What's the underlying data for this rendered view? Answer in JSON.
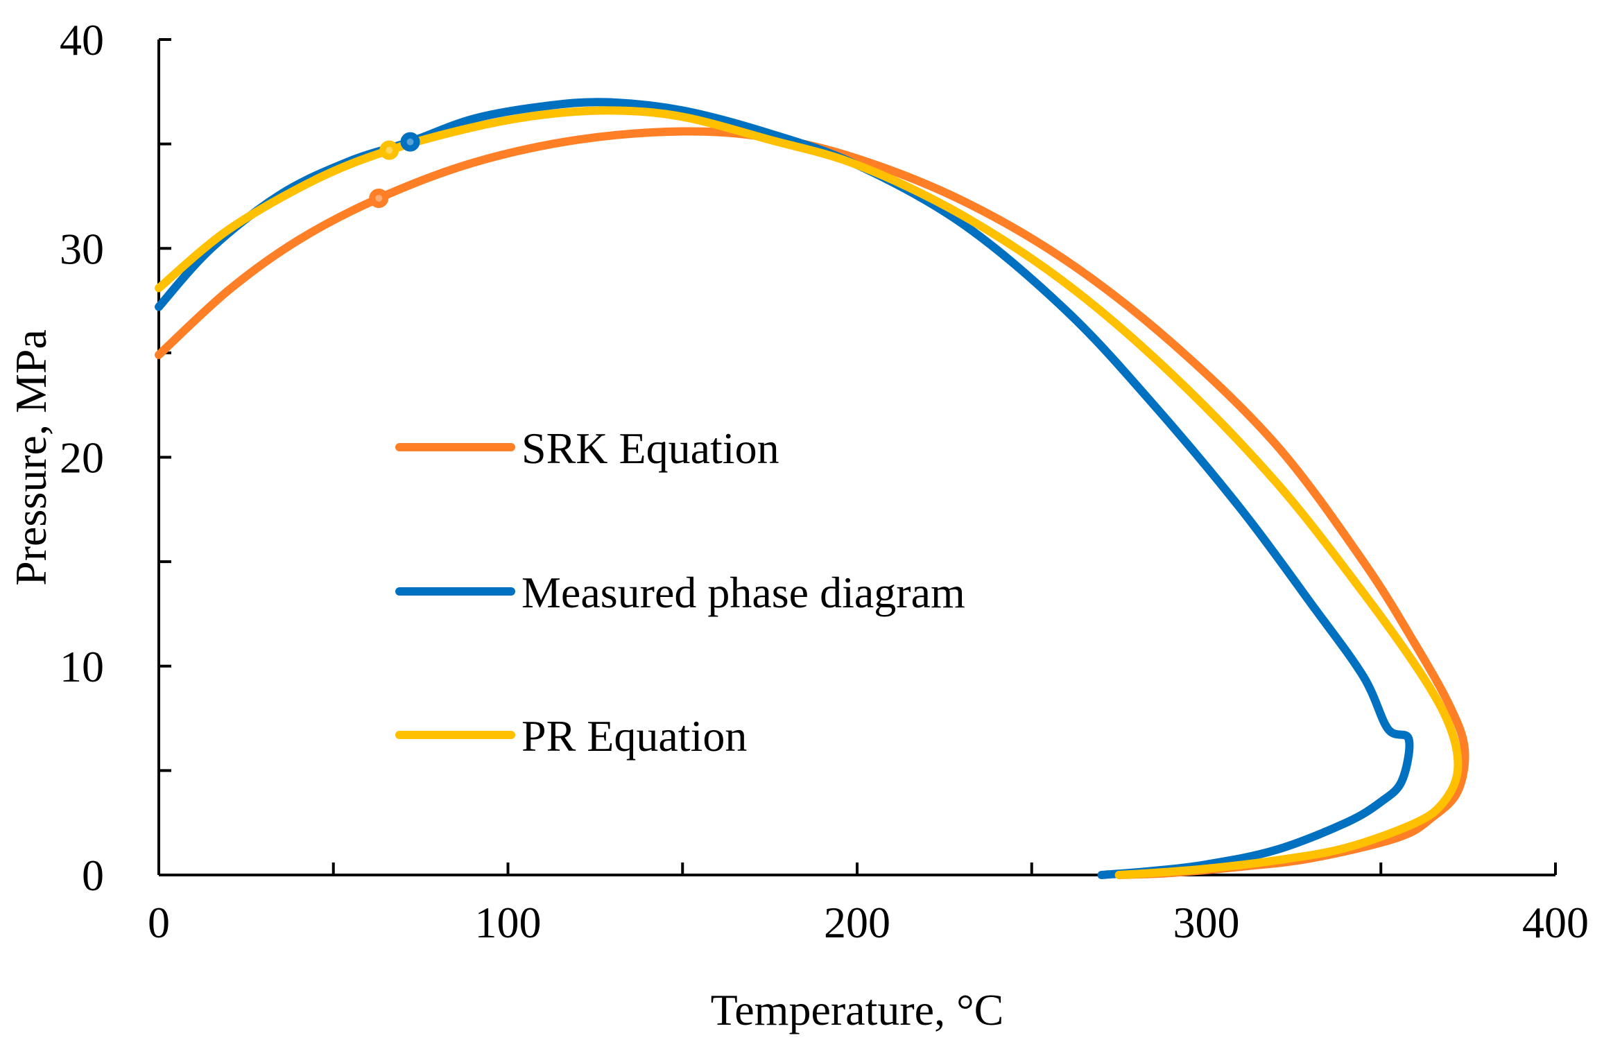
{
  "chart_data": {
    "type": "line",
    "title": "",
    "xlabel": "Temperature, °C",
    "ylabel": "Pressure, MPa",
    "xlim": [
      0,
      400
    ],
    "ylim": [
      0,
      40
    ],
    "x_ticks": [
      0,
      100,
      200,
      300,
      400
    ],
    "x_minor_ticks": [
      50,
      150,
      250,
      350
    ],
    "y_ticks": [
      0,
      10,
      20,
      30,
      40
    ],
    "y_minor_ticks": [
      5,
      15,
      25,
      35
    ],
    "grid": false,
    "legend_position": "center-left",
    "series": [
      {
        "name": "SRK Equation",
        "color": "#FF7F27",
        "points": [
          [
            0,
            24.9
          ],
          [
            20,
            28.0
          ],
          [
            40,
            30.4
          ],
          [
            63,
            32.4
          ],
          [
            90,
            34.1
          ],
          [
            120,
            35.2
          ],
          [
            150,
            35.6
          ],
          [
            175,
            35.3
          ],
          [
            200,
            34.3
          ],
          [
            230,
            32.3
          ],
          [
            260,
            29.4
          ],
          [
            290,
            25.5
          ],
          [
            320,
            20.6
          ],
          [
            345,
            15.0
          ],
          [
            360,
            11.0
          ],
          [
            370,
            8.0
          ],
          [
            374,
            6.0
          ],
          [
            372,
            4.0
          ],
          [
            365,
            2.8
          ],
          [
            355,
            1.8
          ],
          [
            330,
            0.8
          ],
          [
            310,
            0.4
          ],
          [
            290,
            0.1
          ],
          [
            275,
            0.0
          ]
        ],
        "marker": {
          "x": 63,
          "y": 32.4
        }
      },
      {
        "name": "Measured phase diagram",
        "color": "#0070C0",
        "points": [
          [
            0,
            27.2
          ],
          [
            15,
            30.0
          ],
          [
            35,
            32.6
          ],
          [
            55,
            34.2
          ],
          [
            72,
            35.1
          ],
          [
            90,
            36.2
          ],
          [
            110,
            36.8
          ],
          [
            128,
            37.0
          ],
          [
            150,
            36.6
          ],
          [
            175,
            35.5
          ],
          [
            200,
            34.0
          ],
          [
            230,
            31.2
          ],
          [
            260,
            27.0
          ],
          [
            285,
            22.5
          ],
          [
            310,
            17.5
          ],
          [
            330,
            13.0
          ],
          [
            345,
            9.5
          ],
          [
            352,
            7.0
          ],
          [
            358,
            6.5
          ],
          [
            356,
            4.5
          ],
          [
            350,
            3.5
          ],
          [
            340,
            2.5
          ],
          [
            320,
            1.2
          ],
          [
            300,
            0.5
          ],
          [
            285,
            0.2
          ],
          [
            270,
            0.0
          ]
        ],
        "marker": {
          "x": 72,
          "y": 35.1
        }
      },
      {
        "name": "PR Equation",
        "color": "#FFC000",
        "points": [
          [
            0,
            28.1
          ],
          [
            20,
            30.9
          ],
          [
            45,
            33.3
          ],
          [
            66,
            34.7
          ],
          [
            90,
            35.8
          ],
          [
            110,
            36.4
          ],
          [
            130,
            36.6
          ],
          [
            150,
            36.3
          ],
          [
            175,
            35.2
          ],
          [
            200,
            34.0
          ],
          [
            230,
            31.6
          ],
          [
            260,
            28.3
          ],
          [
            290,
            24.0
          ],
          [
            320,
            18.8
          ],
          [
            345,
            13.5
          ],
          [
            362,
            9.5
          ],
          [
            370,
            7.0
          ],
          [
            372,
            5.0
          ],
          [
            368,
            3.5
          ],
          [
            360,
            2.5
          ],
          [
            340,
            1.3
          ],
          [
            320,
            0.7
          ],
          [
            300,
            0.3
          ],
          [
            285,
            0.1
          ],
          [
            275,
            0.0
          ]
        ],
        "marker": {
          "x": 66,
          "y": 34.7
        }
      }
    ]
  }
}
